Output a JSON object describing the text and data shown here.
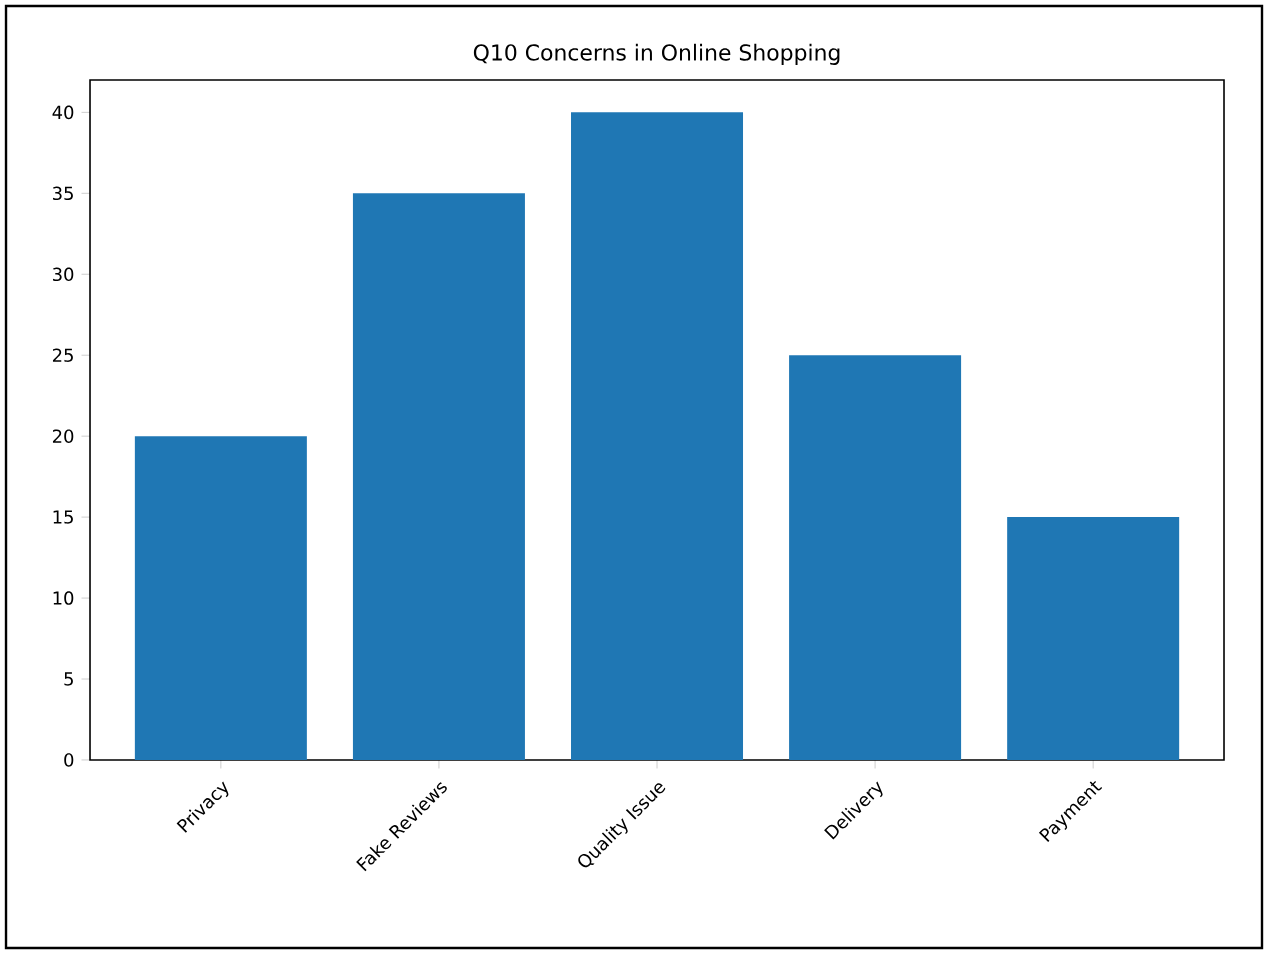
{
  "chart_data": {
    "type": "bar",
    "title": "Q10 Concerns in Online Shopping",
    "categories": [
      "Privacy",
      "Fake Reviews",
      "Quality Issue",
      "Delivery",
      "Payment"
    ],
    "values": [
      20,
      35,
      40,
      25,
      15
    ],
    "color": "#1f77b4",
    "ylim": [
      0,
      42
    ],
    "yticks": [
      0,
      5,
      10,
      15,
      20,
      25,
      30,
      35,
      40
    ]
  }
}
